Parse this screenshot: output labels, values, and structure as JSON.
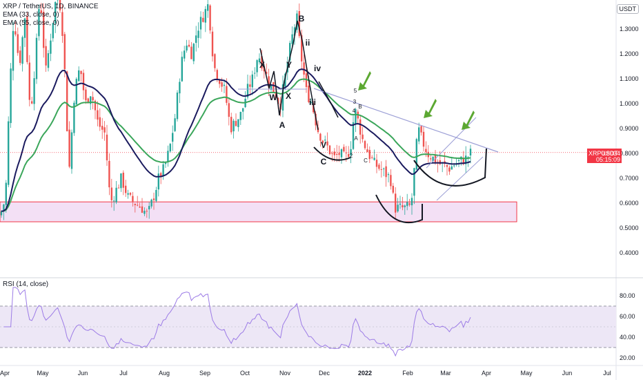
{
  "legend": {
    "symbol": "XRP / TetherUS, 1D, BINANCE",
    "ema1": "EMA (33, close, 0)",
    "ema2": "EMA (55, close, 0)",
    "rsi": "RSI (14, close)"
  },
  "currency_badge": "USDT",
  "price_tag": {
    "symbol": "XRPUSDT",
    "price": "0.8034",
    "timer": "05:15:09"
  },
  "colors": {
    "up": "#26a69a",
    "down": "#ef5350",
    "ema33": "#1a1a5e",
    "ema55": "#3aa65a",
    "zone_fill": "#f3e0f5",
    "zone_stroke": "#f23645",
    "trendline": "#9c9fd6",
    "rsi_line": "#9c7be6",
    "rsi_band": "#ede7f6",
    "arrow": "#5ca832"
  },
  "chart_data": {
    "type": "candlestick",
    "symbol": "XRPUSDT",
    "y_axis_ticks": [
      "0.4000",
      "0.5000",
      "0.6000",
      "0.7000",
      "0.8000",
      "0.9000",
      "1.0000",
      "1.1000",
      "1.2000",
      "1.3000"
    ],
    "ylim": [
      0.38,
      1.42
    ],
    "x_axis_ticks": [
      "Apr",
      "May",
      "Jun",
      "Jul",
      "Aug",
      "Sep",
      "Oct",
      "Nov",
      "Dec",
      "2022",
      "Feb",
      "Mar",
      "Apr",
      "May",
      "Jun",
      "Jul"
    ],
    "last_price": 0.8034,
    "support_zone": [
      0.525,
      0.605
    ],
    "ema_33_last": 0.74,
    "ema_55_last": 0.75,
    "wave_labels": [
      "B",
      "ii",
      "iv",
      "X",
      "Y",
      "W",
      "X",
      "iii",
      "A",
      "V",
      "C",
      "5",
      "3",
      "B",
      "4",
      "A",
      "2",
      "C"
    ],
    "rsi": {
      "ticks": [
        "80.00",
        "60.00",
        "40.00",
        "20.00"
      ],
      "upper_band": 70,
      "lower_band": 30,
      "mid": 50,
      "last": 57
    }
  }
}
